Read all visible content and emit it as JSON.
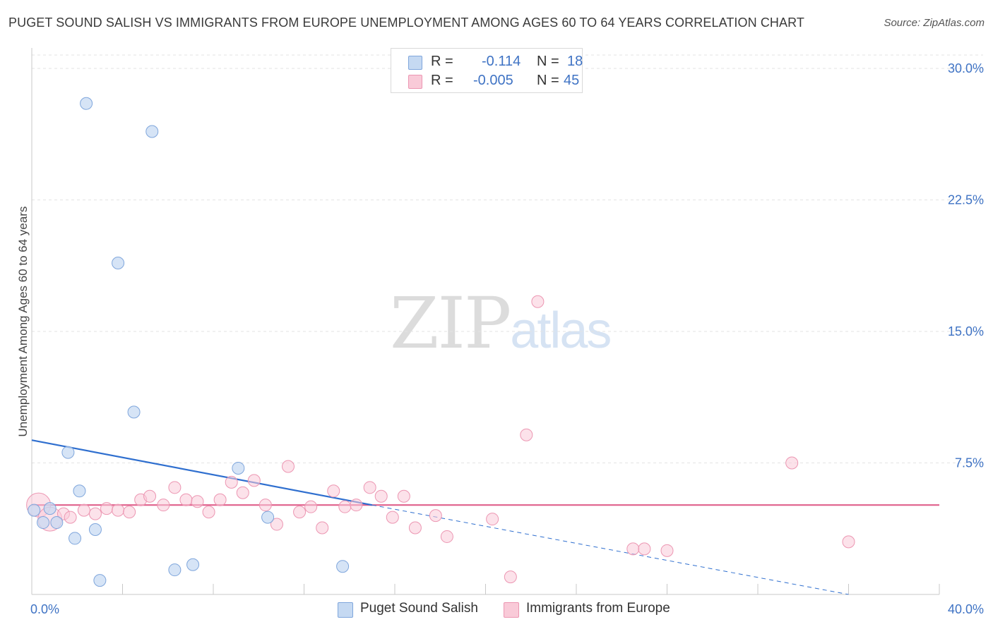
{
  "header": {
    "title": "PUGET SOUND SALISH VS IMMIGRANTS FROM EUROPE UNEMPLOYMENT AMONG AGES 60 TO 64 YEARS CORRELATION CHART",
    "source": "Source: ZipAtlas.com"
  },
  "watermark": {
    "zip": "ZIP",
    "atlas": "atlas"
  },
  "legend": {
    "rows": [
      {
        "r_label": "R =",
        "r_value": "-0.114",
        "n_label": "N =",
        "n_value": "18",
        "color": "#a9c8ef"
      },
      {
        "r_label": "R =",
        "r_value": "-0.005",
        "n_label": "N =",
        "n_value": "45",
        "color": "#f7b9cc"
      }
    ]
  },
  "bottom_legend": {
    "series1": "Puget Sound Salish",
    "series2": "Immigrants from Europe"
  },
  "colors": {
    "series1_fill": "#c5d9f2",
    "series1_stroke": "#7fa6dc",
    "series1_line": "#2f6fcf",
    "series2_fill": "#f9cad8",
    "series2_stroke": "#ec96b2",
    "series2_line": "#e0608c",
    "tick_color": "#3f73c4"
  },
  "chart_data": {
    "type": "scatter",
    "title": "PUGET SOUND SALISH VS IMMIGRANTS FROM EUROPE UNEMPLOYMENT AMONG AGES 60 TO 64 YEARS CORRELATION CHART",
    "xlabel": "",
    "ylabel": "Unemployment Among Ages 60 to 64 years",
    "xlim": [
      0,
      40
    ],
    "ylim": [
      0,
      30
    ],
    "x_ticks": [
      "0.0%",
      "40.0%"
    ],
    "y_ticks": [
      {
        "value": 7.5,
        "label": "7.5%"
      },
      {
        "value": 15.0,
        "label": "15.0%"
      },
      {
        "value": 22.5,
        "label": "22.5%"
      },
      {
        "value": 30.0,
        "label": "30.0%"
      }
    ],
    "grid": true,
    "series": [
      {
        "name": "Puget Sound Salish",
        "points": [
          {
            "x": 0.1,
            "y": 4.8
          },
          {
            "x": 0.5,
            "y": 4.1
          },
          {
            "x": 0.8,
            "y": 4.9
          },
          {
            "x": 1.1,
            "y": 4.1
          },
          {
            "x": 1.6,
            "y": 8.1
          },
          {
            "x": 1.9,
            "y": 3.2
          },
          {
            "x": 2.1,
            "y": 5.9
          },
          {
            "x": 2.4,
            "y": 28.0
          },
          {
            "x": 2.8,
            "y": 3.7
          },
          {
            "x": 3.0,
            "y": 0.8
          },
          {
            "x": 3.8,
            "y": 18.9
          },
          {
            "x": 4.5,
            "y": 10.4
          },
          {
            "x": 5.3,
            "y": 26.4
          },
          {
            "x": 6.3,
            "y": 1.4
          },
          {
            "x": 7.1,
            "y": 1.7
          },
          {
            "x": 9.1,
            "y": 7.2
          },
          {
            "x": 10.4,
            "y": 4.4
          },
          {
            "x": 13.7,
            "y": 1.6
          }
        ],
        "trend": {
          "x0": 0,
          "y0": 8.8,
          "x1": 15,
          "y1": 5.1,
          "dashed_to_x": 36,
          "dashed_to_y": 0
        }
      },
      {
        "name": "Immigrants from Europe",
        "points": [
          {
            "x": 0.3,
            "y": 5.1,
            "big": true
          },
          {
            "x": 0.8,
            "y": 4.3,
            "big": true
          },
          {
            "x": 1.4,
            "y": 4.6
          },
          {
            "x": 1.7,
            "y": 4.4
          },
          {
            "x": 2.3,
            "y": 4.8
          },
          {
            "x": 2.8,
            "y": 4.6
          },
          {
            "x": 3.3,
            "y": 4.9
          },
          {
            "x": 3.8,
            "y": 4.8
          },
          {
            "x": 4.3,
            "y": 4.7
          },
          {
            "x": 4.8,
            "y": 5.4
          },
          {
            "x": 5.2,
            "y": 5.6
          },
          {
            "x": 5.8,
            "y": 5.1
          },
          {
            "x": 6.3,
            "y": 6.1
          },
          {
            "x": 6.8,
            "y": 5.4
          },
          {
            "x": 7.3,
            "y": 5.3
          },
          {
            "x": 7.8,
            "y": 4.7
          },
          {
            "x": 8.3,
            "y": 5.4
          },
          {
            "x": 8.8,
            "y": 6.4
          },
          {
            "x": 9.3,
            "y": 5.8
          },
          {
            "x": 9.8,
            "y": 6.5
          },
          {
            "x": 10.3,
            "y": 5.1
          },
          {
            "x": 10.8,
            "y": 4.0
          },
          {
            "x": 11.3,
            "y": 7.3
          },
          {
            "x": 11.8,
            "y": 4.7
          },
          {
            "x": 12.3,
            "y": 5.0
          },
          {
            "x": 12.8,
            "y": 3.8
          },
          {
            "x": 13.3,
            "y": 5.9
          },
          {
            "x": 13.8,
            "y": 5.0
          },
          {
            "x": 14.3,
            "y": 5.1
          },
          {
            "x": 14.9,
            "y": 6.1
          },
          {
            "x": 15.4,
            "y": 5.6
          },
          {
            "x": 15.9,
            "y": 4.4
          },
          {
            "x": 16.4,
            "y": 5.6
          },
          {
            "x": 16.9,
            "y": 3.8
          },
          {
            "x": 17.8,
            "y": 4.5
          },
          {
            "x": 18.3,
            "y": 3.3
          },
          {
            "x": 20.3,
            "y": 4.3
          },
          {
            "x": 21.1,
            "y": 1.0
          },
          {
            "x": 21.8,
            "y": 9.1
          },
          {
            "x": 22.3,
            "y": 16.7
          },
          {
            "x": 26.5,
            "y": 2.6
          },
          {
            "x": 27.0,
            "y": 2.6
          },
          {
            "x": 28.0,
            "y": 2.5
          },
          {
            "x": 33.5,
            "y": 7.5
          },
          {
            "x": 36.0,
            "y": 3.0
          }
        ],
        "trend": {
          "x0": 0,
          "y0": 5.1,
          "x1": 40,
          "y1": 5.1
        }
      }
    ]
  }
}
